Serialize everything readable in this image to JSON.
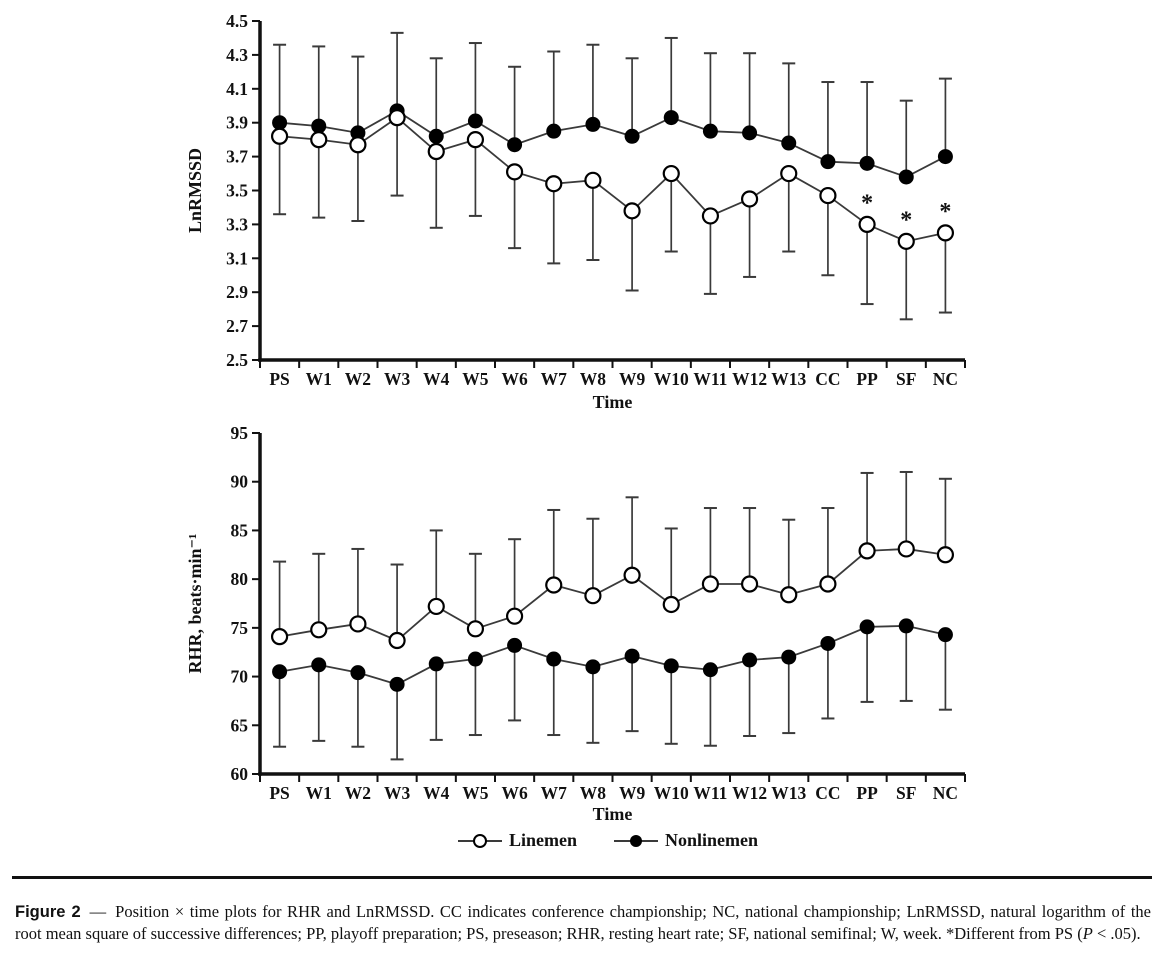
{
  "colors": {
    "ink": "#111111",
    "series_line": "#3a3a3a",
    "background": "#ffffff",
    "open_marker_fill": "#ffffff",
    "filled_marker_fill": "#000000"
  },
  "legend": {
    "items": [
      {
        "label": "Linemen",
        "marker": "open"
      },
      {
        "label": "Nonlinemen",
        "marker": "filled"
      }
    ]
  },
  "caption": {
    "label": "Figure 2",
    "dash": "—",
    "body": "Position × time plots for RHR and LnRMSSD. CC indicates conference championship; NC, national championship; LnRMSSD, natural logarithm of the root mean square of successive differences; PP, playoff preparation; PS, preseason; RHR, resting heart rate; SF, national semifinal; W, week. *Different from PS (",
    "p_italic": "P",
    "body_end": " < .05)."
  },
  "chart_data": [
    {
      "type": "line",
      "title": "",
      "xlabel": "Time",
      "ylabel": "LnRMSSD",
      "ylim": [
        2.5,
        4.5
      ],
      "yticks": [
        "4.5",
        "4.3",
        "4.1",
        "3.9",
        "3.7",
        "3.5",
        "3.3",
        "3.1",
        "2.9",
        "2.7",
        "2.5"
      ],
      "grid": false,
      "legend_position": "none",
      "categories": [
        "PS",
        "W1",
        "W2",
        "W3",
        "W4",
        "W5",
        "W6",
        "W7",
        "W8",
        "W9",
        "W10",
        "W11",
        "W12",
        "W13",
        "CC",
        "PP",
        "SF",
        "NC"
      ],
      "series": [
        {
          "name": "Nonlinemen",
          "marker": "filled",
          "values": [
            3.9,
            3.88,
            3.84,
            3.97,
            3.82,
            3.91,
            3.77,
            3.85,
            3.89,
            3.82,
            3.93,
            3.85,
            3.84,
            3.78,
            3.67,
            3.66,
            3.58,
            3.7
          ],
          "error_high": [
            4.36,
            4.35,
            4.29,
            4.43,
            4.28,
            4.37,
            4.23,
            4.32,
            4.36,
            4.28,
            4.4,
            4.31,
            4.31,
            4.25,
            4.14,
            4.14,
            4.03,
            4.16
          ]
        },
        {
          "name": "Linemen",
          "marker": "open",
          "values": [
            3.82,
            3.8,
            3.77,
            3.93,
            3.73,
            3.8,
            3.61,
            3.54,
            3.56,
            3.38,
            3.6,
            3.35,
            3.45,
            3.6,
            3.47,
            3.3,
            3.2,
            3.25
          ],
          "error_low": [
            3.36,
            3.34,
            3.32,
            3.47,
            3.28,
            3.35,
            3.16,
            3.07,
            3.09,
            2.91,
            3.14,
            2.89,
            2.99,
            3.14,
            3.0,
            2.83,
            2.74,
            2.78
          ]
        }
      ],
      "annotations": {
        "symbol": "*",
        "series": "Linemen",
        "categories": [
          "PP",
          "SF",
          "NC"
        ]
      }
    },
    {
      "type": "line",
      "title": "",
      "xlabel": "Time",
      "ylabel": "RHR, beats·min⁻¹",
      "ylim": [
        60,
        95
      ],
      "yticks": [
        "95",
        "90",
        "85",
        "80",
        "75",
        "70",
        "65",
        "60"
      ],
      "grid": false,
      "legend_position": "below",
      "categories": [
        "PS",
        "W1",
        "W2",
        "W3",
        "W4",
        "W5",
        "W6",
        "W7",
        "W8",
        "W9",
        "W10",
        "W11",
        "W12",
        "W13",
        "CC",
        "PP",
        "SF",
        "NC"
      ],
      "series": [
        {
          "name": "Linemen",
          "marker": "open",
          "values": [
            74.1,
            74.8,
            75.4,
            73.7,
            77.2,
            74.9,
            76.2,
            79.4,
            78.3,
            80.4,
            77.4,
            79.5,
            79.5,
            78.4,
            79.5,
            82.9,
            83.1,
            82.5
          ],
          "error_high": [
            81.8,
            82.6,
            83.1,
            81.5,
            85.0,
            82.6,
            84.1,
            87.1,
            86.2,
            88.4,
            85.2,
            87.3,
            87.3,
            86.1,
            87.3,
            90.9,
            91.0,
            90.3
          ]
        },
        {
          "name": "Nonlinemen",
          "marker": "filled",
          "values": [
            70.5,
            71.2,
            70.4,
            69.2,
            71.3,
            71.8,
            73.2,
            71.8,
            71.0,
            72.1,
            71.1,
            70.7,
            71.7,
            72.0,
            73.4,
            75.1,
            75.2,
            74.3
          ],
          "error_low": [
            62.8,
            63.4,
            62.8,
            61.5,
            63.5,
            64.0,
            65.5,
            64.0,
            63.2,
            64.4,
            63.1,
            62.9,
            63.9,
            64.2,
            65.7,
            67.4,
            67.5,
            66.6
          ]
        }
      ]
    }
  ]
}
